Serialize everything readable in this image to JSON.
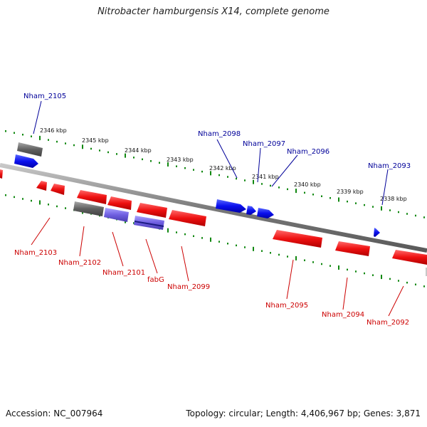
{
  "title": "Nitrobacter hamburgensis X14, complete genome",
  "footer": {
    "accession": "Accession: NC_007964",
    "summary": "Topology: circular; Length: 4,406,967 bp; Genes: 3,871"
  },
  "colors": {
    "forward": "#0000ee",
    "reverse": "#ee0000",
    "backbone": "#808080",
    "tick": "#118811",
    "forward_label": "#000099",
    "reverse_label": "#cc0000",
    "unassigned": "#666666",
    "highlight_blue": "#6a5acd"
  },
  "kbp_labels": [
    "2346 kbp",
    "2345 kbp",
    "2344 kbp",
    "2343 kbp",
    "2342 kbp",
    "2341 kbp",
    "2340 kbp",
    "2339 kbp",
    "2338 kbp"
  ],
  "forward_gene_labels": [
    "Nham_2105",
    "Nham_2098",
    "Nham_2097",
    "Nham_2096",
    "Nham_2093"
  ],
  "reverse_gene_labels": [
    "Nham_2103",
    "Nham_2102",
    "Nham_2101",
    "fabG",
    "Nham_2099",
    "Nham_2095",
    "Nham_2094",
    "Nham_2092"
  ]
}
